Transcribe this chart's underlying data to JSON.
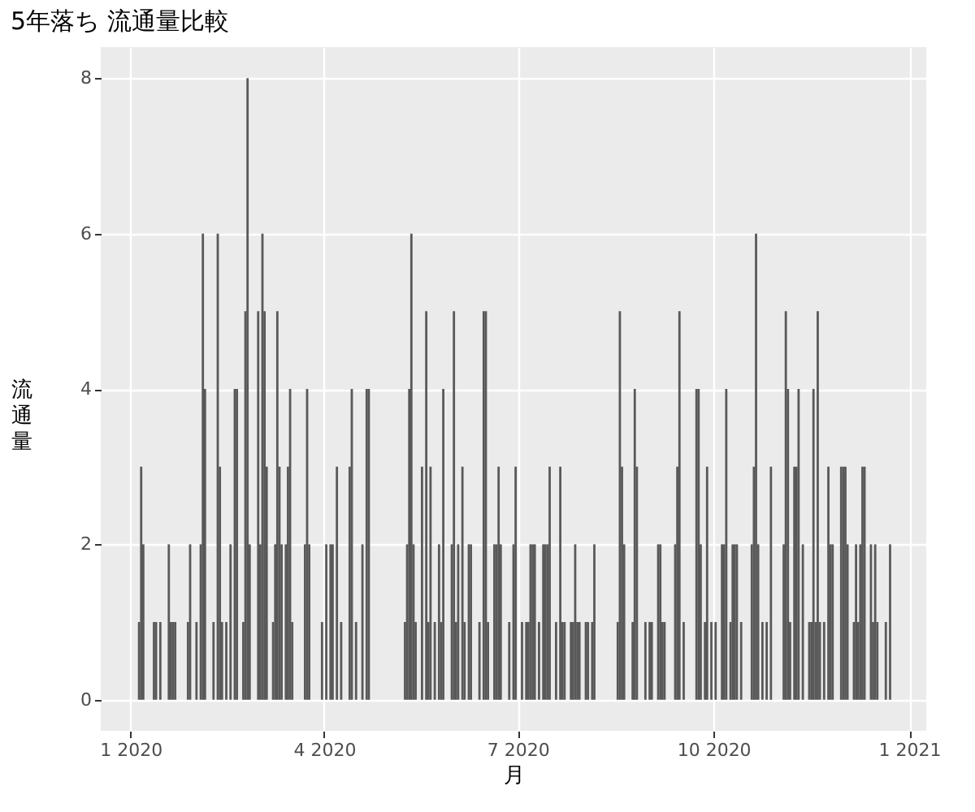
{
  "chart_data": {
    "type": "bar",
    "title": "5年落ち 流通量比較",
    "xlabel": "月",
    "ylabel": "流通量",
    "color": "#595959",
    "x": [
      "2020-01-05",
      "2020-01-06",
      "2020-01-07",
      "2020-01-12",
      "2020-01-13",
      "2020-01-15",
      "2020-01-19",
      "2020-01-20",
      "2020-01-21",
      "2020-01-22",
      "2020-01-28",
      "2020-01-29",
      "2020-02-01",
      "2020-02-03",
      "2020-02-04",
      "2020-02-05",
      "2020-02-09",
      "2020-02-11",
      "2020-02-12",
      "2020-02-13",
      "2020-02-15",
      "2020-02-17",
      "2020-02-19",
      "2020-02-20",
      "2020-02-23",
      "2020-02-24",
      "2020-02-25",
      "2020-02-26",
      "2020-03-01",
      "2020-03-02",
      "2020-03-03",
      "2020-03-04",
      "2020-03-05",
      "2020-03-08",
      "2020-03-09",
      "2020-03-10",
      "2020-03-11",
      "2020-03-12",
      "2020-03-14",
      "2020-03-15",
      "2020-03-16",
      "2020-03-17",
      "2020-03-23",
      "2020-03-24",
      "2020-03-25",
      "2020-03-31",
      "2020-04-02",
      "2020-04-04",
      "2020-04-05",
      "2020-04-07",
      "2020-04-09",
      "2020-04-13",
      "2020-04-14",
      "2020-04-16",
      "2020-04-19",
      "2020-04-21",
      "2020-04-22",
      "2020-05-09",
      "2020-05-10",
      "2020-05-11",
      "2020-05-12",
      "2020-05-13",
      "2020-05-14",
      "2020-05-17",
      "2020-05-19",
      "2020-05-20",
      "2020-05-21",
      "2020-05-23",
      "2020-05-25",
      "2020-05-26",
      "2020-05-27",
      "2020-05-31",
      "2020-06-01",
      "2020-06-02",
      "2020-06-03",
      "2020-06-05",
      "2020-06-06",
      "2020-06-08",
      "2020-06-09",
      "2020-06-13",
      "2020-06-15",
      "2020-06-16",
      "2020-06-17",
      "2020-06-20",
      "2020-06-21",
      "2020-06-22",
      "2020-06-23",
      "2020-06-27",
      "2020-06-29",
      "2020-06-30",
      "2020-07-03",
      "2020-07-05",
      "2020-07-06",
      "2020-07-07",
      "2020-07-08",
      "2020-07-09",
      "2020-07-11",
      "2020-07-13",
      "2020-07-14",
      "2020-07-15",
      "2020-07-16",
      "2020-07-19",
      "2020-07-21",
      "2020-07-22",
      "2020-07-23",
      "2020-07-26",
      "2020-07-27",
      "2020-07-28",
      "2020-07-29",
      "2020-07-30",
      "2020-08-02",
      "2020-08-03",
      "2020-08-05",
      "2020-08-06",
      "2020-08-17",
      "2020-08-18",
      "2020-08-19",
      "2020-08-20",
      "2020-08-24",
      "2020-08-25",
      "2020-08-26",
      "2020-08-30",
      "2020-09-01",
      "2020-09-02",
      "2020-09-05",
      "2020-09-06",
      "2020-09-07",
      "2020-09-08",
      "2020-09-13",
      "2020-09-14",
      "2020-09-15",
      "2020-09-17",
      "2020-09-23",
      "2020-09-24",
      "2020-09-25",
      "2020-09-27",
      "2020-09-28",
      "2020-09-30",
      "2020-10-02",
      "2020-10-05",
      "2020-10-06",
      "2020-10-07",
      "2020-10-09",
      "2020-10-10",
      "2020-10-11",
      "2020-10-12",
      "2020-10-14",
      "2020-10-19",
      "2020-10-20",
      "2020-10-21",
      "2020-10-22",
      "2020-10-24",
      "2020-10-26",
      "2020-10-28",
      "2020-11-03",
      "2020-11-04",
      "2020-11-05",
      "2020-11-06",
      "2020-11-08",
      "2020-11-09",
      "2020-11-10",
      "2020-11-12",
      "2020-11-15",
      "2020-11-16",
      "2020-11-17",
      "2020-11-18",
      "2020-11-19",
      "2020-11-20",
      "2020-11-22",
      "2020-11-24",
      "2020-11-25",
      "2020-11-26",
      "2020-11-30",
      "2020-12-01",
      "2020-12-02",
      "2020-12-03",
      "2020-12-06",
      "2020-12-07",
      "2020-12-08",
      "2020-12-09",
      "2020-12-10",
      "2020-12-11",
      "2020-12-14",
      "2020-12-15",
      "2020-12-16",
      "2020-12-17",
      "2020-12-21",
      "2020-12-23"
    ],
    "values": [
      1,
      3,
      2,
      1,
      1,
      1,
      2,
      1,
      1,
      1,
      1,
      2,
      1,
      2,
      6,
      4,
      1,
      6,
      3,
      1,
      1,
      2,
      4,
      4,
      1,
      5,
      8,
      2,
      5,
      2,
      6,
      5,
      3,
      1,
      2,
      5,
      3,
      2,
      2,
      3,
      4,
      1,
      2,
      4,
      2,
      1,
      2,
      2,
      2,
      3,
      1,
      3,
      4,
      1,
      2,
      4,
      4,
      1,
      2,
      4,
      6,
      2,
      1,
      3,
      5,
      1,
      3,
      1,
      2,
      1,
      4,
      2,
      5,
      1,
      2,
      3,
      1,
      2,
      2,
      1,
      5,
      5,
      1,
      2,
      2,
      3,
      2,
      1,
      2,
      3,
      1,
      1,
      1,
      2,
      2,
      2,
      1,
      2,
      2,
      2,
      3,
      1,
      3,
      1,
      1,
      1,
      1,
      2,
      1,
      1,
      1,
      1,
      1,
      2,
      1,
      5,
      3,
      2,
      1,
      4,
      3,
      1,
      1,
      1,
      2,
      2,
      1,
      1,
      2,
      3,
      5,
      1,
      4,
      4,
      2,
      1,
      3,
      1,
      1,
      2,
      2,
      4,
      1,
      2,
      2,
      2,
      1,
      2,
      3,
      6,
      2,
      1,
      1,
      3,
      2,
      5,
      4,
      1,
      3,
      3,
      4,
      2,
      1,
      1,
      4,
      1,
      5,
      1,
      1,
      3,
      2,
      2,
      3,
      3,
      3,
      2,
      1,
      2,
      1,
      2,
      3,
      3,
      2,
      1,
      2,
      1,
      1,
      2
    ],
    "xlim": [
      "2019-12-18",
      "2021-01-09"
    ],
    "xticks": [
      {
        "value": "2020-01-01",
        "label": "1 2020"
      },
      {
        "value": "2020-04-01",
        "label": "4 2020"
      },
      {
        "value": "2020-07-01",
        "label": "7 2020"
      },
      {
        "value": "2020-10-01",
        "label": "10 2020"
      },
      {
        "value": "2021-01-01",
        "label": "1 2021"
      }
    ],
    "ylim": [
      -0.4,
      8.4
    ],
    "yticks": [
      0,
      2,
      4,
      6,
      8
    ],
    "grid": true
  }
}
